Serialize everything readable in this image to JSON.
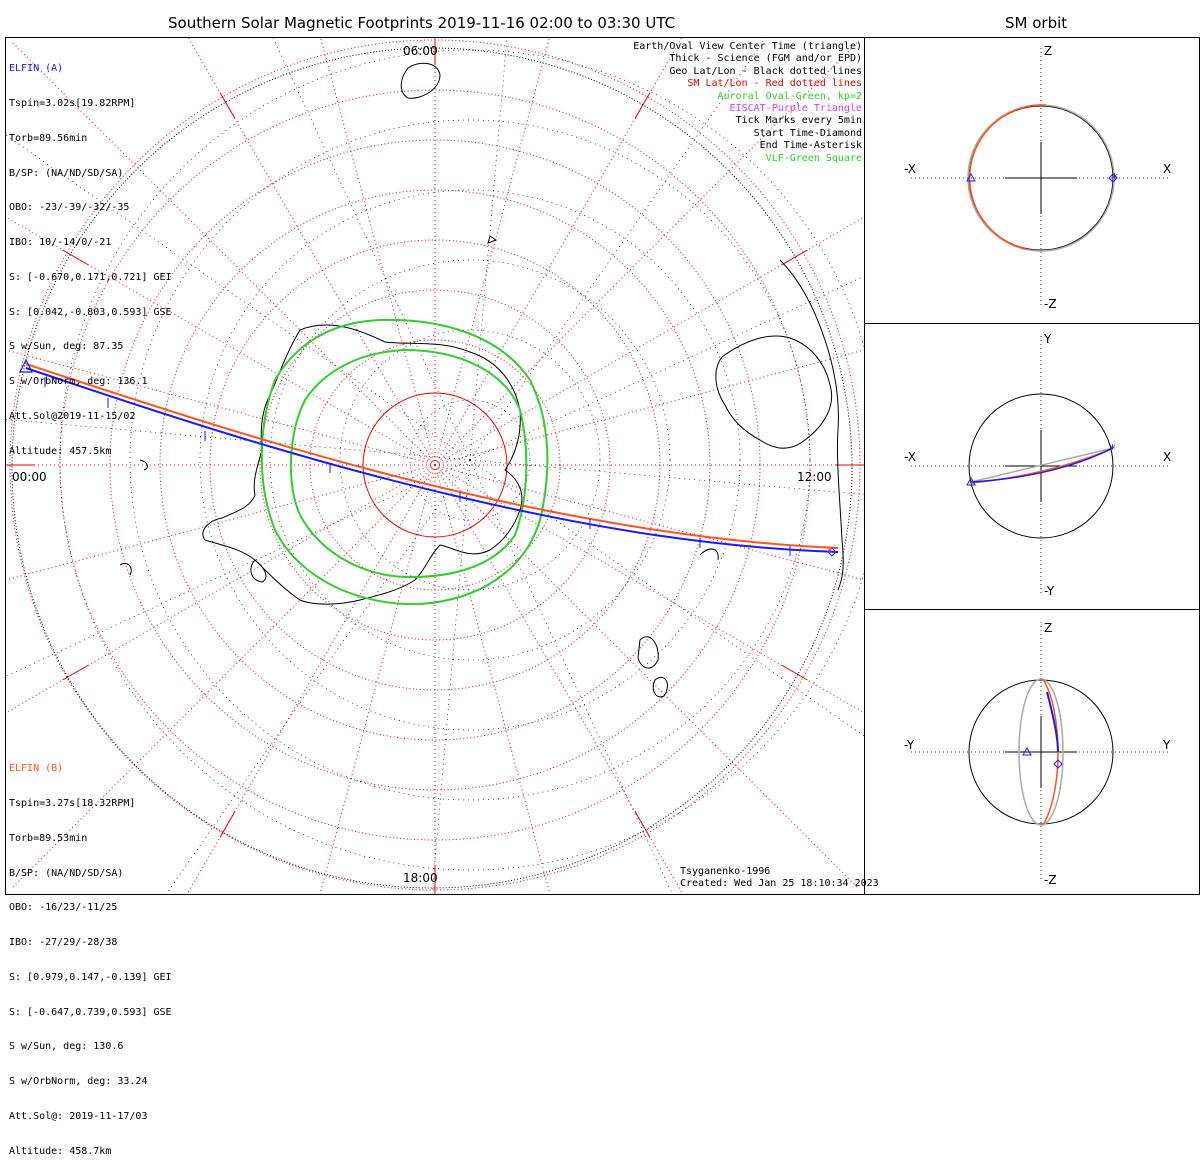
{
  "title": "Southern Solar Magnetic Footprints 2019-11-16 02:00 to 03:30 UTC",
  "orbit_title": "SM orbit",
  "colors": {
    "elfin_a": "#1a1aff",
    "elfin_b": "#ff5522",
    "sm_grid": "#ee0000",
    "geo_grid": "#000000",
    "auroral_oval": "#33cc33",
    "eiscat": "#cc44ff",
    "vlf": "#33cc33",
    "orbit_gray": "#aaaaaa"
  },
  "elfin_a": {
    "label": "ELFIN (A)",
    "lines": [
      "Tspin=3.02s[19.82RPM]",
      "Torb=89.56min",
      "B/SP: (NA/ND/SD/SA)",
      "OBO: -23/-39/-32/-35",
      "IBO: 10/-14/0/-21",
      "S: [-0.670,0.171,0.721] GEI",
      "S: [0.042,-0.803,0.593] GSE",
      "S w/Sun, deg: 87.35",
      "S w/OrbNorm, deg: 136.1",
      "Att.Sol@2019-11-15/02",
      "Altitude: 457.5km"
    ]
  },
  "elfin_b": {
    "label": "ELFIN (B)",
    "lines": [
      "Tspin=3.27s[18.32RPM]",
      "Torb=89.53min",
      "B/SP: (NA/ND/SD/SA)",
      "OBO: -16/23/-11/25",
      "IBO: -27/29/-28/38",
      "S: [0.979,0.147,-0.139] GEI",
      "S: [-0.647,0.739,0.593] GSE",
      "S w/Sun, deg: 130.6",
      "S w/OrbNorm, deg: 33.24",
      "Att.Sol@: 2019-11-17/03",
      "Altitude: 458.7km"
    ]
  },
  "legend": [
    {
      "text": "Earth/Oval View Center Time (triangle)",
      "color": "#000000"
    },
    {
      "text": "Thick - Science (FGM and/or EPD)",
      "color": "#000000"
    },
    {
      "text": "Geo Lat/Lon - Black dotted lines",
      "color": "#000000"
    },
    {
      "text": "SM Lat/Lon - Red dotted lines",
      "color": "#ee0000"
    },
    {
      "text": "Auroral Oval-Green, kp=2",
      "color": "#33cc33"
    },
    {
      "text": "EISCAT-Purple Triangle",
      "color": "#cc44ff"
    },
    {
      "text": "Tick Marks every 5min",
      "color": "#000000"
    },
    {
      "text": "Start Time-Diamond",
      "color": "#000000"
    },
    {
      "text": "End Time-Asterisk",
      "color": "#000000"
    },
    {
      "text": "VLF-Green Square",
      "color": "#33cc33"
    }
  ],
  "mlt_labels": {
    "top": "06:00",
    "left": "00:00",
    "right": "12:00",
    "bottom": "18:00"
  },
  "footer": {
    "model": "Tsyganenko-1996",
    "created": "Created: Wed Jan 25 18:10:34 2023"
  },
  "panels": [
    {
      "up": "Z",
      "down": "-Z",
      "left": "-X",
      "right": "X"
    },
    {
      "up": "Y",
      "down": "-Y",
      "left": "-X",
      "right": "X"
    },
    {
      "up": "Z",
      "down": "-Z",
      "left": "-Y",
      "right": "Y"
    }
  ],
  "chart_data": {
    "type": "polar-map",
    "time_range": [
      "2019-11-16 02:00",
      "2019-11-16 03:30"
    ],
    "series": [
      {
        "name": "ELFIN (A)"
      },
      {
        "name": "ELFIN (B)"
      }
    ]
  }
}
